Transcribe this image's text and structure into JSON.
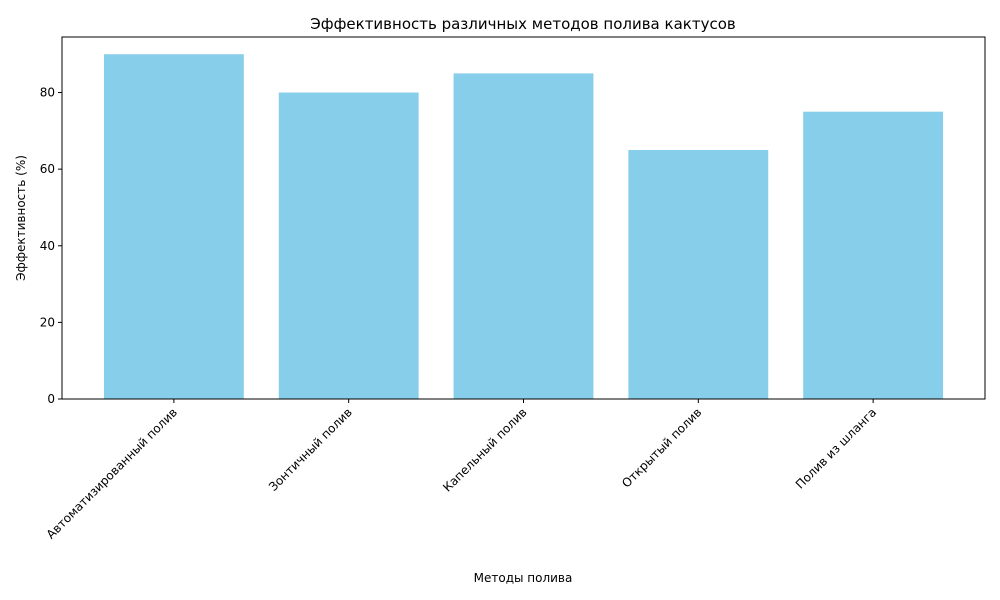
{
  "chart_data": {
    "type": "bar",
    "title": "Эффективность различных методов полива кактусов",
    "x_label": "Методы полива",
    "y_label": "Эффективность (%)",
    "categories": [
      "Автоматизированный полив",
      "Зонтичный полив",
      "Капельный полив",
      "Открытый полив",
      "Полив из шланга"
    ],
    "values": [
      90,
      80,
      85,
      65,
      75
    ],
    "color": "#87ceeb",
    "ylim": [
      0,
      94.5
    ],
    "yticks": [
      0,
      20,
      40,
      60,
      80
    ],
    "grid": false
  }
}
